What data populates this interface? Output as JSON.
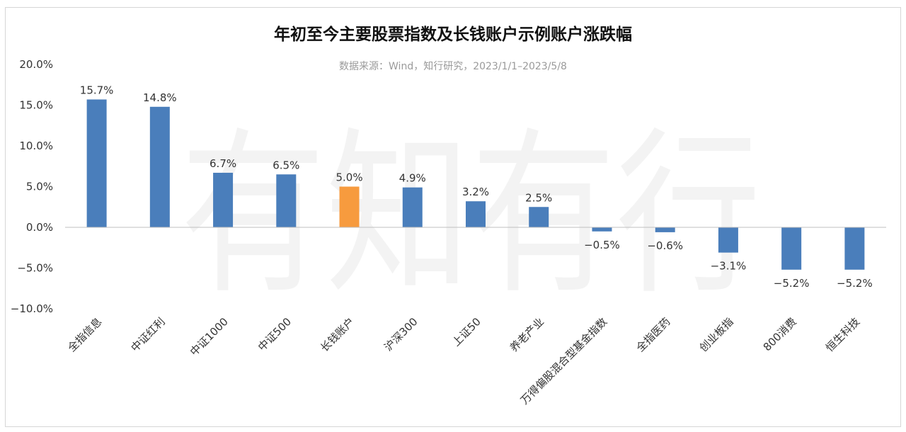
{
  "chart_data": {
    "type": "bar",
    "title": "年初至今主要股票指数及长钱账户示例账户涨跌幅",
    "subtitle": "数据来源：Wind，知行研究，2023/1/1–2023/5/8",
    "watermark": "有知有行",
    "categories": [
      "全指信息",
      "中证红利",
      "中证1000",
      "中证500",
      "长钱账户",
      "沪深300",
      "上证50",
      "养老产业",
      "万得偏股混合型基金指数",
      "全指医药",
      "创业板指",
      "800消费",
      "恒生科技"
    ],
    "values": [
      15.7,
      14.8,
      6.7,
      6.5,
      5.0,
      4.9,
      3.2,
      2.5,
      -0.5,
      -0.6,
      -3.1,
      -5.2,
      -5.2
    ],
    "data_labels": [
      "15.7%",
      "14.8%",
      "6.7%",
      "6.5%",
      "5.0%",
      "4.9%",
      "3.2%",
      "2.5%",
      "−0.5%",
      "−0.6%",
      "−3.1%",
      "−5.2%",
      "−5.2%"
    ],
    "ylim": [
      -10,
      20
    ],
    "yticks": [
      20,
      15,
      10,
      5,
      0,
      -5,
      -10
    ],
    "ytick_labels": [
      "20.0%",
      "15.0%",
      "10.0%",
      "5.0%",
      "0.0%",
      "−5.0%",
      "−10.0%"
    ],
    "highlight_category": "长钱账户",
    "colors": {
      "default": "#4a7ebb",
      "highlight": "#f79b3e",
      "axis": "#bfbfbf"
    },
    "grid": false,
    "legend": "none"
  }
}
